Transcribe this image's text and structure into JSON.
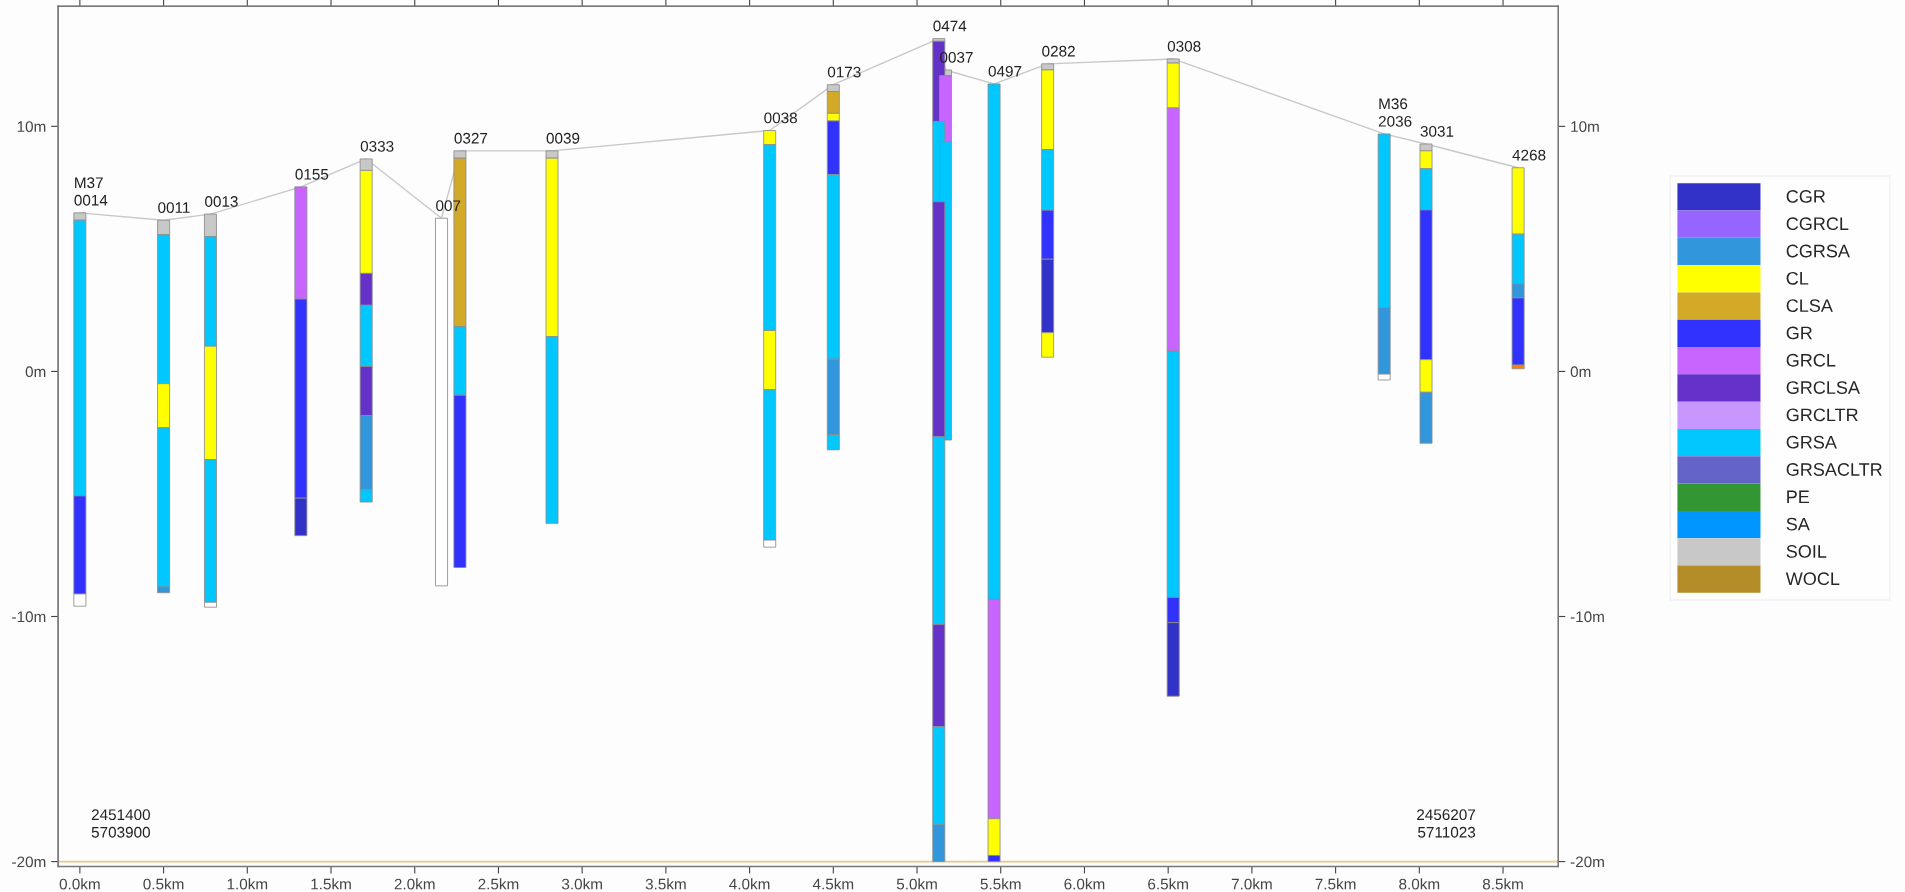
{
  "chart_data": {
    "type": "bar",
    "xlim": [
      -0.13,
      8.83
    ],
    "ylim": [
      -20.2,
      14.9
    ],
    "y2lim": [
      -20.2,
      14.9
    ],
    "xticks": [
      {
        "value": 0,
        "label": "0.0km"
      },
      {
        "value": 0.5,
        "label": "0.5km"
      },
      {
        "value": 1,
        "label": "1.0km"
      },
      {
        "value": 1.5,
        "label": "1.5km"
      },
      {
        "value": 2,
        "label": "2.0km"
      },
      {
        "value": 2.5,
        "label": "2.5km"
      },
      {
        "value": 3,
        "label": "3.0km"
      },
      {
        "value": 3.5,
        "label": "3.5km"
      },
      {
        "value": 4,
        "label": "4.0km"
      },
      {
        "value": 4.5,
        "label": "4.5km"
      },
      {
        "value": 5,
        "label": "5.0km"
      },
      {
        "value": 5.5,
        "label": "5.5km"
      },
      {
        "value": 6,
        "label": "6.0km"
      },
      {
        "value": 6.5,
        "label": "6.5km"
      },
      {
        "value": 7,
        "label": "7.0km"
      },
      {
        "value": 7.5,
        "label": "7.5km"
      },
      {
        "value": 8,
        "label": "8.0km"
      },
      {
        "value": 8.5,
        "label": "8.5km"
      }
    ],
    "yticks": [
      {
        "value": -20,
        "label": "-20m"
      },
      {
        "value": -10,
        "label": "-10m"
      },
      {
        "value": 0,
        "label": "0m"
      },
      {
        "value": 10,
        "label": "10m"
      }
    ],
    "y2ticks": [
      {
        "value": -20,
        "label": "-20m"
      },
      {
        "value": -10,
        "label": "-10m"
      },
      {
        "value": 0,
        "label": "0m"
      },
      {
        "value": 10,
        "label": "10m"
      }
    ],
    "grid": false,
    "legend": "right",
    "ref_lines": [
      {
        "axis": "y",
        "value": -20,
        "color": "#e6c88c"
      }
    ],
    "series": [
      {
        "type": "line",
        "color": "#c8c8c8",
        "marker": "none",
        "x": [
          0.0,
          0.5,
          0.78,
          1.32,
          1.71,
          2.16,
          2.27,
          2.82,
          4.12,
          4.5,
          5.13,
          5.17,
          5.46,
          5.78,
          6.53,
          7.79,
          8.04,
          8.59
        ],
        "values": [
          6.47,
          6.17,
          6.42,
          7.53,
          8.67,
          6.25,
          9.0,
          9.0,
          9.83,
          11.7,
          13.58,
          12.3,
          11.73,
          12.55,
          12.75,
          9.69,
          9.28,
          8.31
        ]
      },
      {
        "x": [
          0.0,
          0.5,
          0.78,
          1.32,
          1.71,
          2.16,
          2.27,
          2.82,
          4.12,
          4.5,
          5.13,
          5.17,
          5.46,
          5.78,
          6.53,
          7.79,
          8.04,
          8.59
        ],
        "base": [
          6.17,
          5.58,
          5.5,
          2.95,
          8.2,
          -8.75,
          8.7,
          8.7,
          9.25,
          11.42,
          13.47,
          12.07,
          -9.3,
          12.3,
          12.58,
          2.6,
          9.0,
          5.6
        ],
        "values": [
          0.3,
          0.59,
          0.92,
          4.58,
          0.47,
          15.0,
          0.3,
          0.3,
          0.58,
          0.28,
          0.11,
          0.23,
          21.03,
          0.25,
          0.17,
          7.09,
          0.28,
          2.71
        ],
        "colors": [
          "#c8c8c8",
          "#c8c8c8",
          "#c8c8c8",
          "#c864ff",
          "#c8c8c8",
          "#ffffff",
          "#c8c8c8",
          "#c8c8c8",
          "#ffff00",
          "#c8c8c8",
          "#c8c8c8",
          "#c8c8c8",
          "#00c8ff",
          "#c8c8c8",
          "#c8c8c8",
          "#00c8ff",
          "#c8c8c8",
          "#ffff00"
        ]
      },
      {
        "x": [
          0.0,
          0.5,
          0.78,
          1.32,
          1.71,
          2.27,
          2.82,
          4.12,
          4.5,
          5.13,
          5.17,
          5.46,
          5.78,
          6.53,
          7.79,
          8.04,
          8.59
        ],
        "base": [
          -5.08,
          -0.5,
          1.03,
          -5.17,
          4.0,
          1.83,
          1.42,
          1.67,
          10.53,
          10.2,
          9.37,
          -18.25,
          9.05,
          10.75,
          -0.11,
          8.27,
          3.57
        ],
        "values": [
          11.25,
          6.08,
          4.47,
          8.12,
          4.2,
          6.87,
          7.28,
          7.58,
          0.89,
          3.27,
          2.7,
          8.95,
          3.25,
          1.83,
          2.71,
          0.73,
          2.03
        ],
        "colors": [
          "#00c8ff",
          "#00c8ff",
          "#00c8ff",
          "#3232ff",
          "#ffff00",
          "#d2aa28",
          "#ffff00",
          "#00c8ff",
          "#d2aa28",
          "#6432c8",
          "#c864ff",
          "#c864ff",
          "#ffff00",
          "#ffff00",
          "#3296dc",
          "#ffff00",
          "#00c8ff"
        ]
      },
      {
        "x": [
          0.0,
          0.5,
          0.78,
          1.32,
          1.71,
          2.27,
          2.82,
          4.12,
          4.5,
          5.13,
          5.17,
          5.46,
          5.78,
          6.53,
          7.79,
          8.04,
          8.59
        ],
        "base": [
          -9.08,
          -2.3,
          -3.6,
          -6.7,
          2.7,
          -0.97,
          -6.2,
          -0.75,
          10.22,
          6.92,
          -2.8,
          -19.75,
          6.58,
          0.83,
          -0.35,
          6.59,
          3.0
        ],
        "values": [
          4.0,
          1.8,
          4.63,
          1.53,
          1.3,
          2.8,
          7.62,
          2.42,
          0.31,
          3.28,
          12.17,
          1.5,
          2.47,
          9.92,
          0.24,
          1.68,
          0.57
        ],
        "colors": [
          "#3232ff",
          "#ffff00",
          "#ffff00",
          "#3232c8",
          "#6432c8",
          "#00c8ff",
          "#00c8ff",
          "#ffff00",
          "#ffff00",
          "#00c8ff",
          "#00c8ff",
          "#ffff00",
          "#00c8ff",
          "#c864ff",
          "#ffffff",
          "#00c8ff",
          "#3296dc"
        ]
      },
      {
        "x": [
          0.0,
          0.5,
          0.78,
          1.71,
          2.27,
          4.12,
          4.5,
          5.13,
          5.46,
          5.78,
          6.53,
          8.04,
          8.59
        ],
        "base": [
          -9.58,
          -8.8,
          -9.42,
          0.2,
          -8.0,
          -6.88,
          8.03,
          -2.67,
          -20.0,
          4.58,
          -9.22,
          0.48,
          0.26
        ],
        "values": [
          0.5,
          6.5,
          5.82,
          2.5,
          7.03,
          6.13,
          2.19,
          9.59,
          0.25,
          2.0,
          10.05,
          6.11,
          2.74
        ],
        "colors": [
          "#ffffff",
          "#00c8ff",
          "#00c8ff",
          "#00c8ff",
          "#3232ff",
          "#00c8ff",
          "#3232ff",
          "#6432c8",
          "#3232ff",
          "#3232ff",
          "#00c8ff",
          "#3232ff",
          "#3232ff"
        ]
      },
      {
        "x": [
          0.5,
          0.78,
          1.71,
          4.12,
          4.5,
          5.13,
          5.78,
          6.53,
          8.04,
          8.59
        ],
        "base": [
          -9.03,
          -9.62,
          -1.8,
          -7.17,
          0.5,
          -10.33,
          1.58,
          -10.25,
          -0.85,
          0.11
        ],
        "values": [
          0.23,
          0.2,
          2.0,
          0.29,
          7.53,
          7.66,
          3.0,
          1.03,
          1.33,
          0.15
        ],
        "colors": [
          "#3296dc",
          "#ffffff",
          "#6432c8",
          "#ffffff",
          "#00c8ff",
          "#00c8ff",
          "#3232c8",
          "#3232ff",
          "#ffff00",
          "#ff8000"
        ]
      },
      {
        "x": [
          1.71,
          4.5,
          5.13,
          5.78,
          6.53,
          8.04
        ],
        "base": [
          -4.83,
          -2.58,
          -14.5,
          0.58,
          -13.25,
          -2.93
        ],
        "values": [
          3.03,
          3.08,
          4.17,
          1.0,
          3.0,
          2.08
        ],
        "colors": [
          "#3296dc",
          "#3296dc",
          "#6432c8",
          "#ffff00",
          "#3232c8",
          "#3296dc"
        ]
      },
      {
        "x": [
          1.71,
          4.5,
          5.13
        ],
        "base": [
          -5.33,
          -3.2,
          -18.5
        ],
        "values": [
          0.5,
          0.62,
          4.0
        ],
        "colors": [
          "#00c8ff",
          "#00c8ff",
          "#00c8ff"
        ]
      },
      {
        "x": [
          5.13
        ],
        "base": [
          -20.0
        ],
        "values": [
          1.5
        ],
        "colors": [
          "#3296dc"
        ]
      },
      {
        "name": "CGR",
        "color": "#3232c8"
      },
      {
        "name": "CGRCL",
        "color": "#9664ff"
      },
      {
        "name": "CGRSA",
        "color": "#3296dc"
      },
      {
        "name": "CL",
        "color": "#ffff00"
      },
      {
        "name": "CLSA",
        "color": "#d2aa28"
      },
      {
        "name": "GR",
        "color": "#3232ff"
      },
      {
        "name": "GRCL",
        "color": "#c864ff"
      },
      {
        "name": "GRCLSA",
        "color": "#6432c8"
      },
      {
        "name": "GRCLTR",
        "color": "#c896ff"
      },
      {
        "name": "GRSA",
        "color": "#00c8ff"
      },
      {
        "name": "GRSACLTR",
        "color": "#6464c8"
      },
      {
        "name": "PE",
        "color": "#329632"
      },
      {
        "name": "SA",
        "color": "#0096ff"
      },
      {
        "name": "SOIL",
        "color": "#c8c8c8"
      },
      {
        "name": "WOCL",
        "color": "#b48c28"
      }
    ],
    "annotations": [
      {
        "text": "M37\n0014",
        "x": 0.0,
        "y": 6.47
      },
      {
        "text": "0011",
        "x": 0.5,
        "y": 6.17
      },
      {
        "text": "0013",
        "x": 0.78,
        "y": 6.42
      },
      {
        "text": "0155",
        "x": 1.32,
        "y": 7.53
      },
      {
        "text": "0333",
        "x": 1.71,
        "y": 8.67
      },
      {
        "text": "007",
        "x": 2.16,
        "y": 6.25
      },
      {
        "text": "0327",
        "x": 2.27,
        "y": 9.0
      },
      {
        "text": "0039",
        "x": 2.82,
        "y": 9.0
      },
      {
        "text": "0038",
        "x": 4.12,
        "y": 9.83
      },
      {
        "text": "0173",
        "x": 4.5,
        "y": 11.7
      },
      {
        "text": "0474",
        "x": 5.13,
        "y": 13.58
      },
      {
        "text": "0037",
        "x": 5.17,
        "y": 12.3
      },
      {
        "text": "0497",
        "x": 5.46,
        "y": 11.73
      },
      {
        "text": "0282",
        "x": 5.78,
        "y": 12.55
      },
      {
        "text": "0308",
        "x": 6.53,
        "y": 12.75
      },
      {
        "text": "M36\n2036",
        "x": 7.79,
        "y": 9.69
      },
      {
        "text": "3031",
        "x": 8.04,
        "y": 9.28
      },
      {
        "text": "4268",
        "x": 8.59,
        "y": 8.31
      },
      "2451400\n5703900",
      "2456207\n5711023"
    ]
  }
}
